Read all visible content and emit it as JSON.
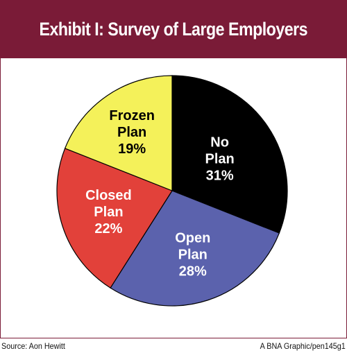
{
  "header": {
    "title": "Exhibit I: Survey of Large Employers"
  },
  "chart_data": {
    "type": "pie",
    "title": "Exhibit I: Survey of Large Employers",
    "slices": [
      {
        "label": [
          "No",
          "Plan",
          "31%"
        ],
        "value": 31,
        "color": "#000000",
        "text_color": "#ffffff"
      },
      {
        "label": [
          "Open",
          "Plan",
          "28%"
        ],
        "value": 28,
        "color": "#5b62ad",
        "text_color": "#ffffff"
      },
      {
        "label": [
          "Closed",
          "Plan",
          "22%"
        ],
        "value": 22,
        "color": "#e2413a",
        "text_color": "#ffffff"
      },
      {
        "label": [
          "Frozen",
          "Plan",
          "19%"
        ],
        "value": 19,
        "color": "#f4f15a",
        "text_color": "#000000"
      }
    ]
  },
  "footer": {
    "source": "Source: Aon Hewitt",
    "credit": "A BNA Graphic/pen145g1"
  }
}
